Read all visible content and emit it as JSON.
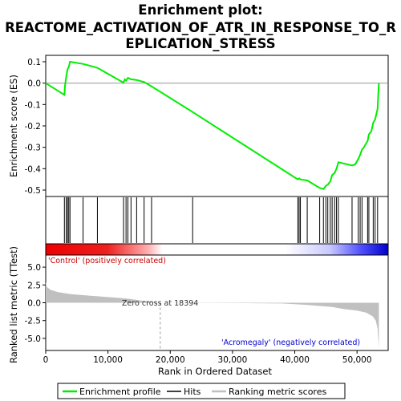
{
  "chart_data": [
    {
      "type": "line",
      "title": [
        "Enrichment plot:",
        "REACTOME_ACTIVATION_OF_ATR_IN_RESPONSE_TO_R",
        "EPLICATION_STRESS"
      ],
      "ylabel": "Enrichment score (ES)",
      "ylim": [
        -0.53,
        0.13
      ],
      "yticks": [
        0.1,
        0.0,
        -0.1,
        -0.2,
        -0.3,
        -0.4,
        -0.5
      ],
      "ytick_labels": [
        "0.1",
        "0.0",
        "-0.1",
        "-0.2",
        "-0.3",
        "-0.4",
        "-0.5"
      ],
      "series": [
        {
          "name": "Enrichment profile",
          "color": "#00ee00",
          "x": [
            0,
            3000,
            3100,
            3300,
            3500,
            3700,
            3900,
            6000,
            8300,
            12500,
            12700,
            12900,
            13200,
            13700,
            14600,
            15800,
            17000,
            23600,
            40500,
            40700,
            40900,
            42000,
            44000,
            44600,
            45000,
            45300,
            45700,
            46000,
            46400,
            46700,
            47000,
            49200,
            49700,
            50200,
            50500,
            50800,
            51000,
            51700,
            51900,
            52300,
            52600,
            52900,
            53300,
            53500
          ],
          "y": [
            0.0,
            -0.055,
            -0.01,
            0.03,
            0.065,
            0.075,
            0.1,
            0.09,
            0.072,
            0.002,
            0.018,
            0.012,
            0.025,
            0.018,
            0.015,
            0.005,
            -0.015,
            -0.135,
            -0.45,
            -0.445,
            -0.45,
            -0.455,
            -0.49,
            -0.495,
            -0.48,
            -0.475,
            -0.46,
            -0.43,
            -0.42,
            -0.4,
            -0.37,
            -0.385,
            -0.38,
            -0.355,
            -0.335,
            -0.31,
            -0.305,
            -0.27,
            -0.24,
            -0.225,
            -0.185,
            -0.17,
            -0.12,
            0.0
          ]
        }
      ]
    },
    {
      "type": "scatter",
      "description_free": true,
      "legend_name": "Hits",
      "hits": [
        3000,
        3300,
        3500,
        3700,
        3900,
        6000,
        8300,
        12500,
        12900,
        13200,
        13700,
        14600,
        15800,
        17000,
        23600,
        40500,
        40700,
        40900,
        42000,
        44000,
        44600,
        45000,
        45300,
        45700,
        46000,
        46400,
        46700,
        47000,
        49200,
        50200,
        50500,
        50800,
        51700,
        51900,
        52600,
        52900,
        53300
      ]
    },
    {
      "type": "area",
      "ylabel": "Ranked list metric (TTest)",
      "xlabel": "Rank in Ordered Dataset",
      "legend_name": "Ranking metric scores",
      "xlim": [
        0,
        55000
      ],
      "xticks": [
        0,
        10000,
        20000,
        30000,
        40000,
        50000
      ],
      "xtick_labels": [
        "0",
        "10,000",
        "20,000",
        "30,000",
        "40,000",
        "50,000"
      ],
      "ylim": [
        -6.7,
        6.7
      ],
      "yticks": [
        5.0,
        2.5,
        0.0,
        -2.5,
        -5.0
      ],
      "ytick_labels": [
        "5.0",
        "2.5",
        "0.0",
        "-2.5",
        "-5.0"
      ],
      "x": [
        0,
        200,
        800,
        2000,
        4000,
        7000,
        10000,
        13000,
        15000,
        17000,
        18394,
        22000,
        30000,
        38000,
        42000,
        46000,
        48000,
        50000,
        51500,
        52500,
        53000,
        53300,
        53500
      ],
      "y": [
        2.9,
        2.2,
        1.8,
        1.5,
        1.2,
        1.0,
        0.8,
        0.6,
        0.35,
        0.12,
        0.0,
        -0.02,
        -0.05,
        -0.1,
        -0.3,
        -0.6,
        -0.9,
        -1.1,
        -1.4,
        -1.9,
        -2.5,
        -3.6,
        -6.3
      ],
      "zero_cross_label": "Zero cross at 18394",
      "positive_label": "'Control' (positively correlated)",
      "negative_label": "'Acromegaly' (negatively correlated)",
      "positive_color": "#cc0000",
      "negative_color": "#0000cc",
      "fill_color": "#c0c0c0"
    }
  ],
  "legend": {
    "enrichment": "Enrichment profile",
    "hits": "Hits",
    "ranking": "Ranking metric scores"
  },
  "colors": {
    "es_line": "#00ee00",
    "hit_line": "#000000",
    "metric_fill": "#c0c0c0",
    "bar_red": "#ee0000",
    "bar_blue": "#0000ee"
  }
}
